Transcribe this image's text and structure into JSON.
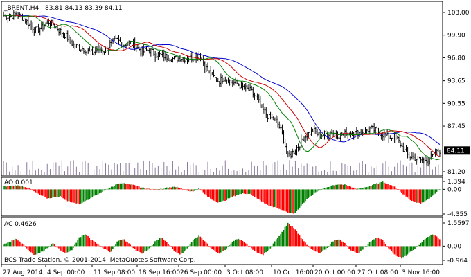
{
  "header": {
    "symbol": "_BRENT,H4",
    "ohlc": "83.81 84.13 83.39 84.11"
  },
  "main_panel": {
    "price_ticks": [
      "103.00",
      "99.90",
      "96.80",
      "93.65",
      "90.55",
      "87.45",
      "81.20"
    ],
    "current_price": "84.11"
  },
  "ao_panel": {
    "label": "AO 0.001",
    "ticks": [
      "1.394",
      "0.00",
      "-4.355"
    ]
  },
  "ac_panel": {
    "label": "AC 0.4626",
    "ticks": [
      "1.5597",
      "0.00",
      "-0.964"
    ]
  },
  "time_axis": [
    "27 Aug 2014",
    "4 Sep 00:00",
    "11 Sep 08:00",
    "18 Sep 16:00",
    "26 Sep 00:00",
    "3 Oct 08:00",
    "10 Oct 16:00",
    "20 Oct 00:00",
    "27 Oct 08:00",
    "3 Nov 16:00"
  ],
  "copyright": "BCS Trade Station, © 2001-2014, MetaQuotes Software Corp.",
  "colors": {
    "background": "#ffffff",
    "candles": "#000000",
    "volume": "#8a7a99",
    "alligator_jaw": "#0000cc",
    "alligator_teeth": "#cc0000",
    "alligator_lips": "#008000",
    "histogram_up": "#008000",
    "histogram_down": "#ff0000",
    "price_tag": "#000000"
  },
  "chart_data": [
    {
      "type": "candlestick",
      "series": [
        {
          "name": "_BRENT,H4",
          "values": [
            102.6,
            102.4,
            102.8,
            102.3,
            101.5,
            100.6,
            100.9,
            101.8,
            101.3,
            100.4,
            99.7,
            98.6,
            98.2,
            97.9,
            97.4,
            98.1,
            97.7,
            98.8,
            99.2,
            98.6,
            98.9,
            98.3,
            97.6,
            97.9,
            97.3,
            97.1,
            96.9,
            96.6,
            96.8,
            96.7,
            96.8,
            97.4,
            95.4,
            94.3,
            93.6,
            94.1,
            93.5,
            93.2,
            92.7,
            92.3,
            91.3,
            89.7,
            88.6,
            88.3,
            86.6,
            83.2,
            84.1,
            85.2,
            86.3,
            86.9,
            86.1,
            86.4,
            86.6,
            86.2,
            86.4,
            86.6,
            86.5,
            86.7,
            87.1,
            86.8,
            86.3,
            85.9,
            86.1,
            84.6,
            83.4,
            83.1,
            82.8,
            82.9,
            83.4,
            84.11
          ]
        }
      ],
      "ylim": [
        81.2,
        103.0
      ]
    },
    {
      "type": "bar",
      "series": [
        {
          "name": "AO",
          "values": [
            0.5,
            0.6,
            0.7,
            0.55,
            0.3,
            -0.5,
            -1.1,
            -1.6,
            -1.4,
            -1.2,
            -2.0,
            -2.3,
            -2.6,
            -2.0,
            -1.4,
            -0.8,
            -0.2,
            0.4,
            0.9,
            1.2,
            0.9,
            0.6,
            0.3,
            0.1,
            -0.1,
            0.1,
            0.3,
            0.5,
            0.2,
            -0.2,
            -0.4,
            0.2,
            -1.0,
            -1.8,
            -2.3,
            -2.0,
            -1.4,
            -1.0,
            -0.7,
            -0.8,
            -1.5,
            -2.2,
            -2.9,
            -3.2,
            -3.6,
            -4.1,
            -4.3,
            -3.0,
            -1.8,
            -0.8,
            -0.2,
            0.3,
            0.7,
            0.9,
            0.8,
            0.4,
            0.1,
            0.3,
            0.6,
            1.0,
            1.3,
            0.9,
            0.4,
            -0.6,
            -1.6,
            -2.2,
            -2.5,
            -1.9,
            -1.0,
            0.001
          ]
        }
      ],
      "ylim": [
        -4.355,
        1.394
      ]
    },
    {
      "type": "bar",
      "series": [
        {
          "name": "AC",
          "values": [
            0.1,
            0.3,
            0.5,
            0.2,
            -0.3,
            -0.6,
            -0.4,
            -0.1,
            0.2,
            -0.3,
            -0.5,
            -0.2,
            0.6,
            0.8,
            0.4,
            0.1,
            -0.2,
            -0.4,
            0.3,
            0.5,
            0.1,
            -0.3,
            -0.5,
            -0.2,
            0.3,
            0.6,
            0.2,
            -0.3,
            -0.6,
            -0.2,
            0.4,
            0.7,
            0.3,
            -0.2,
            -0.5,
            -0.3,
            0.2,
            0.5,
            0.3,
            -0.1,
            -0.4,
            -0.6,
            -0.3,
            0.4,
            0.9,
            1.56,
            1.2,
            0.6,
            0.1,
            -0.3,
            -0.5,
            -0.2,
            0.3,
            0.5,
            0.2,
            -0.3,
            -0.5,
            -0.2,
            0.3,
            0.6,
            0.4,
            -0.2,
            -0.6,
            -0.8,
            -0.5,
            -0.2,
            0.2,
            0.6,
            0.8,
            0.4626
          ]
        }
      ],
      "ylim": [
        -0.964,
        1.5597
      ]
    }
  ]
}
